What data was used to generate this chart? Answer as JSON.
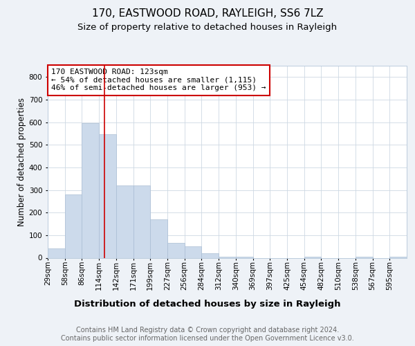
{
  "title1": "170, EASTWOOD ROAD, RAYLEIGH, SS6 7LZ",
  "title2": "Size of property relative to detached houses in Rayleigh",
  "xlabel": "Distribution of detached houses by size in Rayleigh",
  "ylabel": "Number of detached properties",
  "bin_labels": [
    "29sqm",
    "58sqm",
    "86sqm",
    "114sqm",
    "142sqm",
    "171sqm",
    "199sqm",
    "227sqm",
    "256sqm",
    "284sqm",
    "312sqm",
    "340sqm",
    "369sqm",
    "397sqm",
    "425sqm",
    "454sqm",
    "482sqm",
    "510sqm",
    "538sqm",
    "567sqm",
    "595sqm"
  ],
  "bar_heights": [
    40,
    280,
    595,
    548,
    320,
    320,
    170,
    65,
    50,
    20,
    5,
    5,
    0,
    0,
    0,
    5,
    0,
    0,
    5,
    0,
    5
  ],
  "bar_color": "#ccdaeb",
  "bar_edge_color": "#aabdd4",
  "annotation_text": "170 EASTWOOD ROAD: 123sqm\n← 54% of detached houses are smaller (1,115)\n46% of semi-detached houses are larger (953) →",
  "annotation_box_color": "#ffffff",
  "annotation_box_edge": "#cc0000",
  "red_line_color": "#cc0000",
  "ylim": [
    0,
    850
  ],
  "yticks": [
    0,
    100,
    200,
    300,
    400,
    500,
    600,
    700,
    800
  ],
  "background_color": "#eef2f7",
  "plot_background": "#ffffff",
  "footer_text": "Contains HM Land Registry data © Crown copyright and database right 2024.\nContains public sector information licensed under the Open Government Licence v3.0.",
  "grid_color": "#cdd8e3",
  "title1_fontsize": 11,
  "title2_fontsize": 9.5,
  "xlabel_fontsize": 9.5,
  "ylabel_fontsize": 8.5,
  "annotation_fontsize": 8,
  "footer_fontsize": 7,
  "tick_fontsize": 7.5
}
